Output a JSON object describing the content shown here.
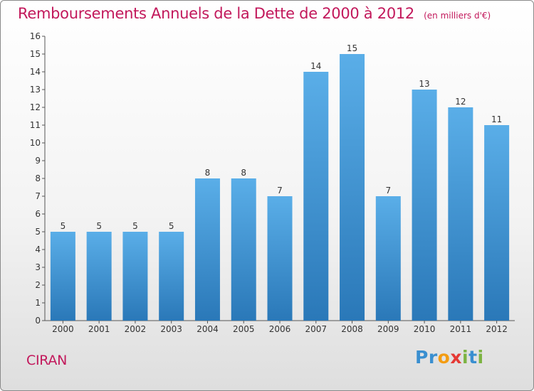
{
  "chart_data": {
    "type": "bar",
    "title": "Remboursements Annuels de la Dette de 2000 à 2012",
    "unit": "(en milliers d'€)",
    "categories": [
      "2000",
      "2001",
      "2002",
      "2003",
      "2004",
      "2005",
      "2006",
      "2007",
      "2008",
      "2009",
      "2010",
      "2011",
      "2012"
    ],
    "values": [
      5,
      5,
      5,
      5,
      8,
      8,
      7,
      14,
      15,
      7,
      13,
      12,
      11
    ],
    "ylim": [
      0,
      16
    ],
    "yticks": [
      0,
      1,
      2,
      3,
      4,
      5,
      6,
      7,
      8,
      9,
      10,
      11,
      12,
      13,
      14,
      15,
      16
    ],
    "xlabel": "",
    "ylabel": "",
    "grid": false,
    "legend": "none",
    "bar_color_top": "#5aaee8",
    "bar_color_bottom": "#2a78b8"
  },
  "footer": {
    "city": "CIRAN",
    "brand_letters": [
      {
        "ch": "P",
        "color": "#3a8fd0"
      },
      {
        "ch": "r",
        "color": "#3a8fd0"
      },
      {
        "ch": "o",
        "color": "#f39c12"
      },
      {
        "ch": "x",
        "color": "#e53935"
      },
      {
        "ch": "i",
        "color": "#7cb342"
      },
      {
        "ch": "t",
        "color": "#3a8fd0"
      },
      {
        "ch": "i",
        "color": "#7cb342"
      }
    ]
  }
}
